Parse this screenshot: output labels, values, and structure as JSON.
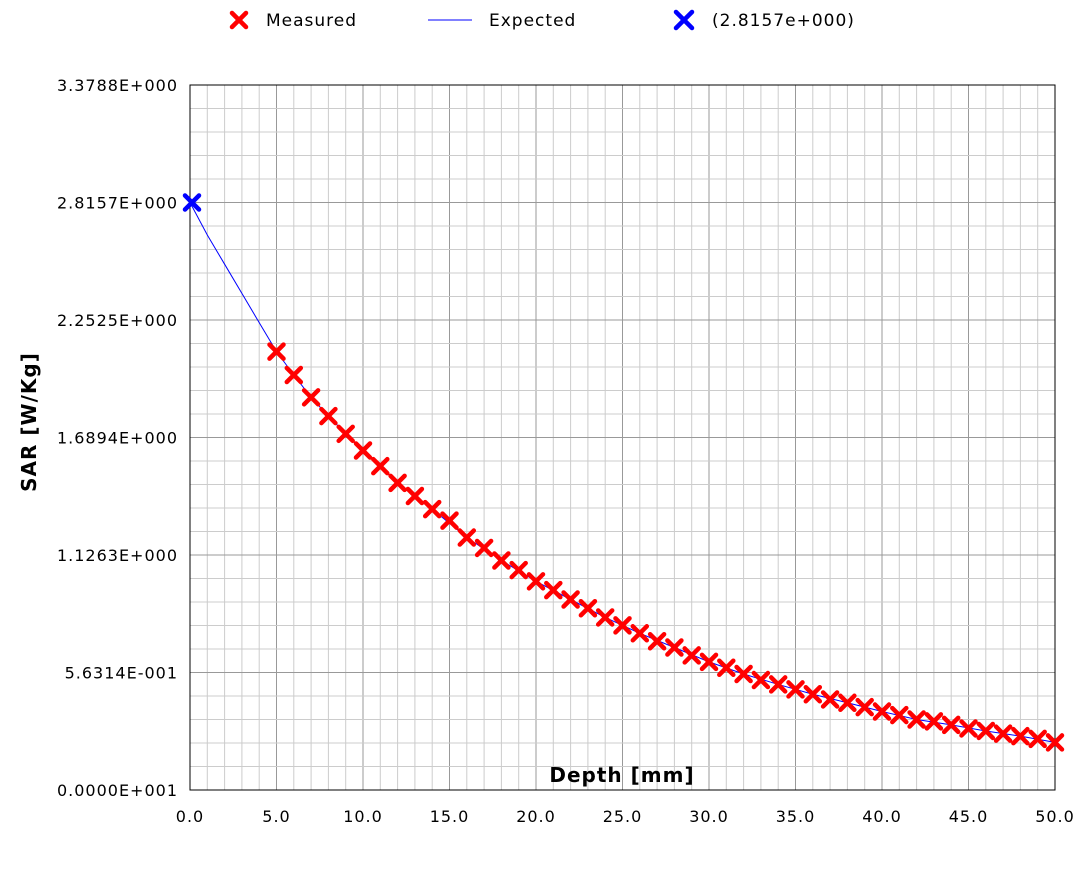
{
  "legend": {
    "measured_label": "Measured",
    "expected_label": "Expected",
    "peak_label": "(2.8157e+000)"
  },
  "colors": {
    "measured": "#ff0000",
    "expected": "#0000ff",
    "peak": "#0000ff",
    "major_grid": "#999999",
    "minor_grid": "#cccccc"
  },
  "chart_data": {
    "type": "scatter",
    "title": "",
    "xlabel": "Depth [mm]",
    "ylabel": "SAR [W/Kg]",
    "xlim": [
      0,
      50
    ],
    "ylim": [
      0,
      3.3788
    ],
    "grid": true,
    "legend_position": "top",
    "x_ticks": [
      0,
      5,
      10,
      15,
      20,
      25,
      30,
      35,
      40,
      45,
      50
    ],
    "x_tick_labels": [
      "0.0",
      "5.0",
      "10.0",
      "15.0",
      "20.0",
      "25.0",
      "30.0",
      "35.0",
      "40.0",
      "45.0",
      "50.0"
    ],
    "y_ticks": [
      0,
      0.56314,
      1.1263,
      1.6894,
      2.2525,
      2.8157,
      3.3788
    ],
    "y_tick_labels": [
      "0.0000E+001",
      "5.6314E-001",
      "1.1263E+000",
      "1.6894E+000",
      "2.2525E+000",
      "2.8157E+000",
      "3.3788E+000"
    ],
    "series": [
      {
        "name": "Measured",
        "kind": "scatter",
        "marker": "x",
        "x": [
          5,
          6,
          7,
          8,
          9,
          10,
          11,
          12,
          13,
          14,
          15,
          16,
          17,
          18,
          19,
          20,
          21,
          22,
          23,
          24,
          25,
          26,
          27,
          28,
          29,
          30,
          31,
          32,
          33,
          34,
          35,
          36,
          37,
          38,
          39,
          40,
          41,
          42,
          43,
          44,
          45,
          46,
          47,
          48,
          49,
          50
        ],
        "y": [
          2.101,
          1.989,
          1.882,
          1.792,
          1.707,
          1.627,
          1.552,
          1.472,
          1.409,
          1.346,
          1.291,
          1.21,
          1.16,
          1.1,
          1.054,
          1.0,
          0.958,
          0.913,
          0.871,
          0.827,
          0.789,
          0.751,
          0.713,
          0.683,
          0.645,
          0.614,
          0.586,
          0.556,
          0.527,
          0.506,
          0.482,
          0.459,
          0.434,
          0.418,
          0.397,
          0.376,
          0.359,
          0.338,
          0.329,
          0.312,
          0.295,
          0.283,
          0.27,
          0.258,
          0.245,
          0.228
        ]
      },
      {
        "name": "Expected",
        "kind": "line",
        "x": [
          0,
          1,
          2,
          3,
          4,
          5,
          6,
          7,
          8,
          9,
          10,
          12,
          14,
          16,
          18,
          20,
          22,
          24,
          26,
          28,
          30,
          32,
          34,
          36,
          38,
          40,
          42,
          44,
          46,
          48,
          50
        ],
        "y": [
          2.8157,
          2.66,
          2.52,
          2.38,
          2.24,
          2.101,
          1.989,
          1.882,
          1.792,
          1.707,
          1.627,
          1.472,
          1.346,
          1.21,
          1.1,
          1.0,
          0.913,
          0.827,
          0.751,
          0.683,
          0.614,
          0.556,
          0.506,
          0.459,
          0.418,
          0.376,
          0.338,
          0.312,
          0.283,
          0.258,
          0.228
        ]
      },
      {
        "name": "(2.8157e+000)",
        "kind": "scatter",
        "marker": "x",
        "x": [
          0
        ],
        "y": [
          2.8157
        ]
      }
    ]
  }
}
